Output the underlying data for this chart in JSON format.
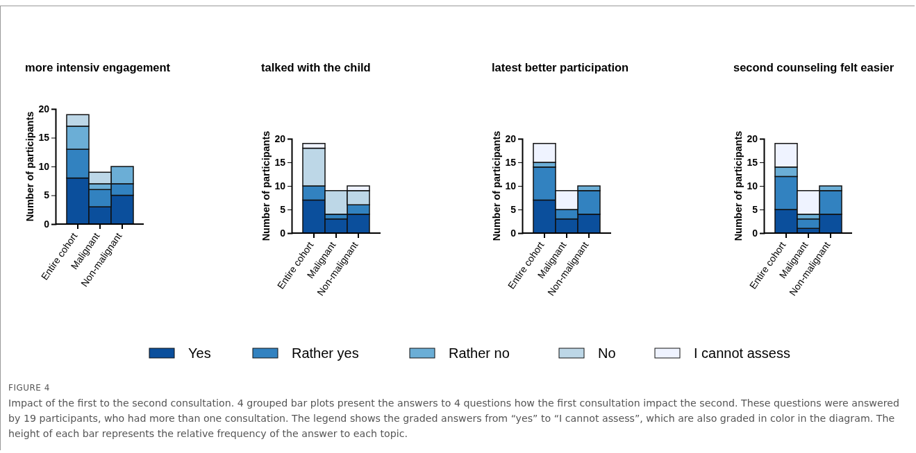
{
  "chart_data": [
    {
      "type": "bar",
      "stacked": true,
      "title": "more intensiv engagement",
      "ylabel": "Number of participants",
      "categories": [
        "Entire cohort",
        "Malignant",
        "Non-malignant"
      ],
      "ylim": [
        0,
        20
      ],
      "yticks": [
        0,
        5,
        10,
        15,
        20
      ],
      "legend": "bottom",
      "series": [
        {
          "name": "Yes",
          "color": "#0b4f9c",
          "values": [
            8,
            3,
            5
          ]
        },
        {
          "name": "Rather yes",
          "color": "#3282c0",
          "values": [
            5,
            3,
            2
          ]
        },
        {
          "name": "Rather no",
          "color": "#6baed6",
          "values": [
            4,
            1,
            3
          ]
        },
        {
          "name": "No",
          "color": "#bdd7e7",
          "values": [
            2,
            2,
            0
          ]
        },
        {
          "name": "I cannot assess",
          "color": "#eff3ff",
          "values": [
            0,
            0,
            0
          ]
        }
      ],
      "annotations": [
        "FIGURE 4",
        "Impact of the first to the second consultation. 4 grouped bar plots present the answers to 4 questions how the first consultation impact the second. These questions were answered by 19 participants, who had more than one consultation. The legend shows the graded answers from “yes” to “I cannot assess”, which are also graded in color in the diagram. The height of each bar represents the relative frequency of the answer to each topic."
      ]
    },
    {
      "type": "bar",
      "stacked": true,
      "title": "talked with the child",
      "ylabel": "Number of participants",
      "categories": [
        "Entire cohort",
        "Malignant",
        "Non-malignant"
      ],
      "ylim": [
        0,
        20
      ],
      "yticks": [
        0,
        5,
        10,
        15,
        20
      ],
      "series": [
        {
          "color": "#0b4f9c",
          "values": [
            7,
            3,
            4
          ]
        },
        {
          "color": "#3282c0",
          "values": [
            3,
            1,
            2
          ]
        },
        {
          "color": "#6baed6",
          "values": [
            0,
            0,
            0
          ]
        },
        {
          "color": "#bdd7e7",
          "values": [
            8,
            5,
            3
          ]
        },
        {
          "color": "#eff3ff",
          "values": [
            1,
            0,
            1
          ]
        }
      ]
    },
    {
      "type": "bar",
      "stacked": true,
      "title": "latest better participation",
      "ylabel": "Number of participants",
      "categories": [
        "Entire cohort",
        "Malignant",
        "Non-malignant"
      ],
      "ylim": [
        0,
        20
      ],
      "yticks": [
        0,
        5,
        10,
        15,
        20
      ],
      "series": [
        {
          "color": "#0b4f9c",
          "values": [
            7,
            3,
            4
          ]
        },
        {
          "color": "#3282c0",
          "values": [
            7,
            2,
            5
          ]
        },
        {
          "color": "#6baed6",
          "values": [
            1,
            0,
            1
          ]
        },
        {
          "color": "#bdd7e7",
          "values": [
            0,
            0,
            0
          ]
        },
        {
          "color": "#eff3ff",
          "values": [
            4,
            4,
            0
          ]
        }
      ]
    },
    {
      "type": "bar",
      "stacked": true,
      "title": "second counseling felt easier",
      "ylabel": "Number of participants",
      "categories": [
        "Entire cohort",
        "Malignant",
        "Non-malignant"
      ],
      "ylim": [
        0,
        20
      ],
      "yticks": [
        0,
        5,
        10,
        15,
        20
      ],
      "series": [
        {
          "color": "#0b4f9c",
          "values": [
            5,
            1,
            4
          ]
        },
        {
          "color": "#3282c0",
          "values": [
            7,
            2,
            5
          ]
        },
        {
          "color": "#6baed6",
          "values": [
            2,
            1,
            1
          ]
        },
        {
          "color": "#bdd7e7",
          "values": [
            0,
            0,
            0
          ]
        },
        {
          "color": "#eff3ff",
          "values": [
            5,
            5,
            0
          ]
        }
      ]
    }
  ]
}
